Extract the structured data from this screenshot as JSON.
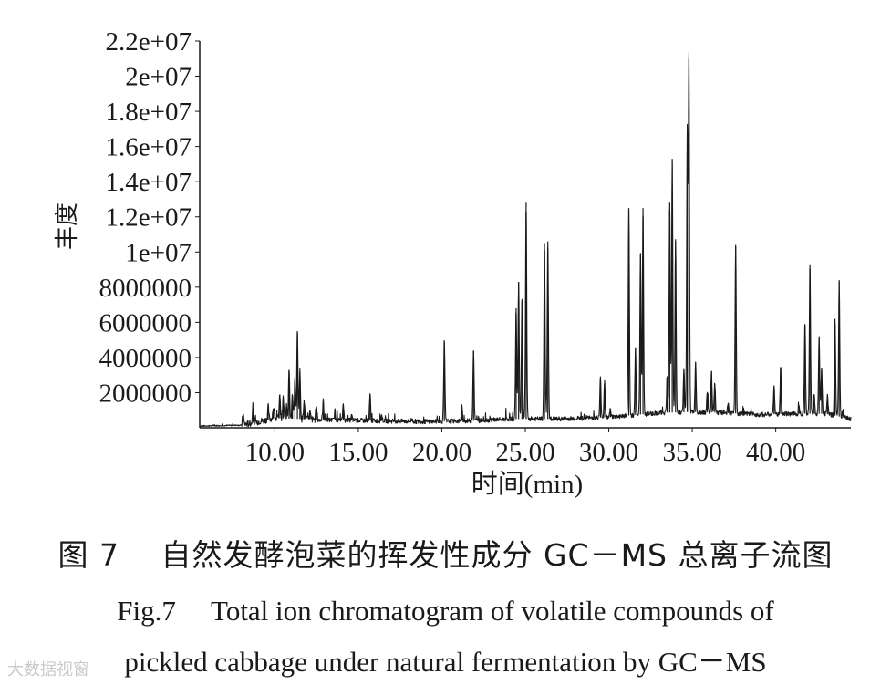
{
  "chart_data": {
    "type": "line",
    "title": "",
    "xlabel": "时间(min)",
    "ylabel": "丰度",
    "xlim": [
      5.5,
      44.5
    ],
    "ylim": [
      0,
      22000000
    ],
    "x_ticks": [
      10,
      15,
      20,
      25,
      30,
      35,
      40
    ],
    "x_tick_labels": [
      "10.00",
      "15.00",
      "20.00",
      "25.00",
      "30.00",
      "35.00",
      "40.00"
    ],
    "y_ticks": [
      2000000,
      4000000,
      6000000,
      8000000,
      10000000,
      12000000,
      14000000,
      16000000,
      18000000,
      20000000,
      22000000
    ],
    "y_tick_labels": [
      "2000000",
      "4000000",
      "6000000",
      "8000000",
      "1e+07",
      "1.2e+07",
      "1.4e+07",
      "1.6e+07",
      "1.8e+07",
      "2e+07",
      "2.2e+07"
    ],
    "baseline": [
      [
        5.5,
        100000
      ],
      [
        8.0,
        150000
      ],
      [
        10.0,
        550000
      ],
      [
        13.0,
        450000
      ],
      [
        16.0,
        400000
      ],
      [
        19.0,
        350000
      ],
      [
        22.0,
        400000
      ],
      [
        24.0,
        500000
      ],
      [
        27.0,
        500000
      ],
      [
        30.0,
        600000
      ],
      [
        33.0,
        850000
      ],
      [
        35.0,
        900000
      ],
      [
        37.0,
        850000
      ],
      [
        39.0,
        750000
      ],
      [
        41.0,
        800000
      ],
      [
        43.0,
        800000
      ],
      [
        44.5,
        500000
      ]
    ],
    "series": [
      {
        "name": "TIC",
        "peaks": [
          [
            8.1,
            800000
          ],
          [
            8.7,
            1100000
          ],
          [
            9.6,
            1200000
          ],
          [
            9.9,
            1100000
          ],
          [
            10.3,
            1900000
          ],
          [
            10.5,
            1700000
          ],
          [
            10.7,
            1400000
          ],
          [
            10.85,
            3300000
          ],
          [
            11.05,
            1800000
          ],
          [
            11.2,
            2700000
          ],
          [
            11.35,
            5500000
          ],
          [
            11.5,
            3200000
          ],
          [
            11.75,
            1600000
          ],
          [
            12.1,
            900000
          ],
          [
            12.5,
            1100000
          ],
          [
            12.9,
            1500000
          ],
          [
            13.6,
            900000
          ],
          [
            14.1,
            1300000
          ],
          [
            14.6,
            700000
          ],
          [
            15.7,
            1900000
          ],
          [
            16.4,
            700000
          ],
          [
            18.2,
            500000
          ],
          [
            20.15,
            4900000
          ],
          [
            21.2,
            1200000
          ],
          [
            21.9,
            4400000
          ],
          [
            24.45,
            6800000
          ],
          [
            24.6,
            8300000
          ],
          [
            24.8,
            7200000
          ],
          [
            25.05,
            12800000
          ],
          [
            26.15,
            10500000
          ],
          [
            26.35,
            10600000
          ],
          [
            28.6,
            600000
          ],
          [
            29.5,
            2800000
          ],
          [
            29.75,
            2700000
          ],
          [
            30.1,
            1100000
          ],
          [
            31.2,
            12500000
          ],
          [
            31.6,
            4500000
          ],
          [
            31.9,
            9900000
          ],
          [
            32.05,
            12500000
          ],
          [
            33.5,
            2900000
          ],
          [
            33.65,
            12800000
          ],
          [
            33.8,
            15300000
          ],
          [
            34.0,
            10600000
          ],
          [
            34.5,
            3300000
          ],
          [
            34.7,
            16800000
          ],
          [
            34.8,
            21000000
          ],
          [
            35.2,
            3700000
          ],
          [
            35.9,
            2000000
          ],
          [
            36.15,
            3200000
          ],
          [
            36.35,
            2500000
          ],
          [
            37.15,
            1400000
          ],
          [
            37.6,
            10400000
          ],
          [
            39.9,
            2300000
          ],
          [
            40.3,
            3400000
          ],
          [
            41.4,
            1200000
          ],
          [
            41.75,
            5900000
          ],
          [
            42.05,
            9300000
          ],
          [
            42.3,
            1900000
          ],
          [
            42.6,
            5100000
          ],
          [
            42.75,
            3400000
          ],
          [
            43.1,
            1900000
          ],
          [
            43.55,
            6200000
          ],
          [
            43.8,
            8400000
          ],
          [
            44.05,
            1000000
          ]
        ]
      }
    ]
  },
  "caption": {
    "zh": "图 7　 自然发酵泡菜的挥发性成分 GC－MS 总离子流图",
    "en_line1": "Fig.7　 Total ion chromatogram of volatile compounds of",
    "en_line2": "pickled cabbage under natural fermentation by GC－MS"
  },
  "watermark": "大数据视窗"
}
